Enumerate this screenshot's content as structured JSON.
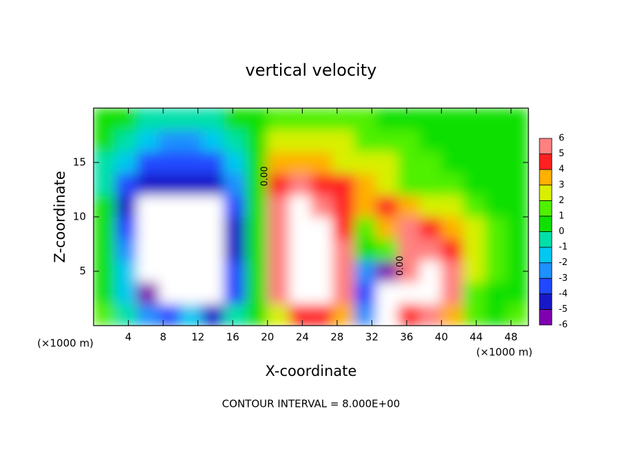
{
  "chart_data": {
    "type": "heatmap",
    "title": "vertical velocity",
    "x_label": "X-coordinate",
    "y_label": "Z-coordinate",
    "unit_label": "(×1000 m)",
    "footer": "CONTOUR INTERVAL = 8.000E+00",
    "annotations": [
      "0.00",
      "0.00"
    ],
    "xlim": [
      0,
      50
    ],
    "ylim": [
      0,
      20
    ],
    "xticks": [
      4,
      8,
      12,
      16,
      20,
      24,
      28,
      32,
      36,
      40,
      44,
      48
    ],
    "yticks": [
      5,
      10,
      15
    ],
    "x": [
      1.25,
      3.75,
      6.25,
      8.75,
      11.25,
      13.75,
      16.25,
      18.75,
      21.25,
      23.75,
      26.25,
      28.75,
      31.25,
      33.75,
      36.25,
      38.75,
      41.25,
      43.75,
      46.25,
      48.75
    ],
    "y": [
      1,
      3,
      5,
      7,
      9,
      11,
      13,
      15,
      17,
      19
    ],
    "z": [
      [
        1,
        -1,
        -3,
        -4,
        -2,
        -5,
        -1,
        0,
        2,
        4,
        4,
        3,
        -3,
        -8,
        4,
        5,
        3,
        1,
        0,
        1
      ],
      [
        0,
        -2,
        -6,
        -8,
        -8,
        -8,
        -4,
        0,
        5,
        8,
        8,
        5,
        -4,
        -8,
        8,
        8,
        5,
        1,
        0,
        0
      ],
      [
        0,
        -2,
        -8,
        -8,
        -8,
        -8,
        -4,
        0,
        6,
        8,
        8,
        5,
        -3,
        -6,
        6,
        7,
        5,
        2,
        1,
        0
      ],
      [
        0,
        -3,
        -8,
        -8,
        -8,
        -8,
        -5,
        0,
        6,
        8,
        8,
        5,
        0,
        1,
        5,
        6,
        4,
        2,
        1,
        0
      ],
      [
        0,
        -4,
        -8,
        -8,
        -8,
        -8,
        -5,
        0,
        6,
        8,
        8,
        4,
        1,
        3,
        5,
        4,
        3,
        2,
        1,
        0
      ],
      [
        0,
        -5,
        -7,
        -7,
        -7,
        -7,
        -4,
        0,
        5,
        7,
        6,
        4,
        3,
        4,
        3,
        2,
        2,
        1,
        0,
        0
      ],
      [
        -1,
        -4,
        -5,
        -5,
        -5,
        -5,
        -3,
        0,
        4,
        5,
        4,
        4,
        3,
        2,
        1,
        1,
        1,
        0,
        0,
        0
      ],
      [
        -1,
        -2,
        -4,
        -4,
        -4,
        -4,
        -2,
        0,
        3,
        3,
        3,
        2,
        2,
        2,
        1,
        1,
        0,
        0,
        0,
        0
      ],
      [
        0,
        -1,
        -2,
        -3,
        -3,
        -2,
        -1,
        0,
        2,
        2,
        2,
        2,
        1,
        1,
        1,
        0,
        0,
        0,
        0,
        0
      ],
      [
        0,
        0,
        -1,
        -1,
        -1,
        -1,
        0,
        0,
        1,
        1,
        1,
        1,
        1,
        0,
        0,
        0,
        0,
        0,
        0,
        0
      ]
    ],
    "levels": [
      -6,
      -5,
      -4,
      -3,
      -2,
      -1,
      0,
      1,
      2,
      3,
      4,
      5,
      6
    ],
    "colors": [
      "#8000b0",
      "#1818c8",
      "#2048ff",
      "#1e90ff",
      "#00c8f0",
      "#00e0a8",
      "#10e000",
      "#50f000",
      "#d8f000",
      "#ffb000",
      "#ff2020",
      "#ff8080"
    ],
    "outside_color": "#ffffff"
  }
}
